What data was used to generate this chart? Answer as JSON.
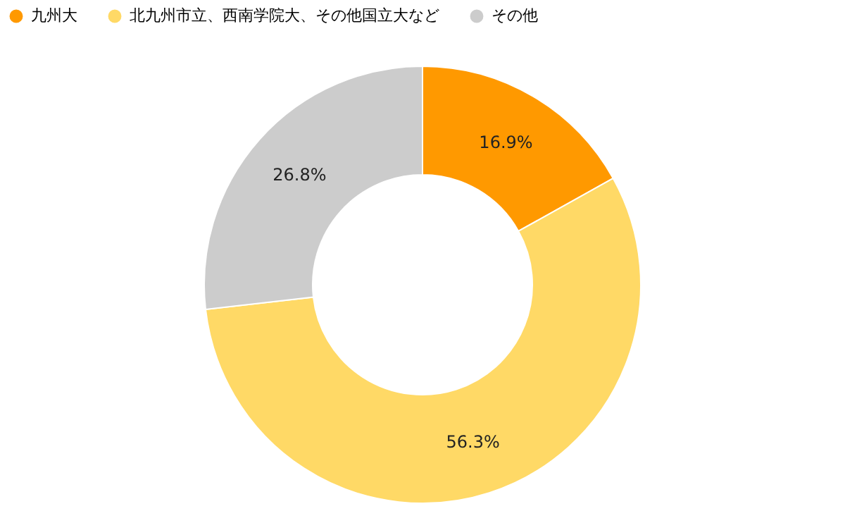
{
  "chart_data": {
    "type": "donut",
    "categories": [
      "九州大",
      "北九州市立、西南学院大、その他国立大など",
      "その他"
    ],
    "values": [
      16.9,
      56.3,
      26.8
    ],
    "colors": [
      "#ff9900",
      "#ffd966",
      "#cccccc"
    ],
    "value_labels": [
      "16.9%",
      "56.3%",
      "26.8%"
    ],
    "legend": "top"
  }
}
